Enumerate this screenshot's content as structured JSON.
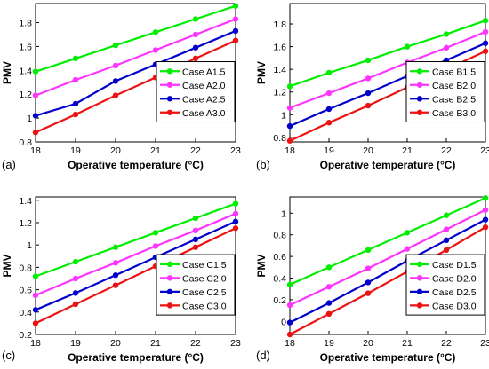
{
  "chart_data": [
    {
      "type": "line",
      "panel_label": "(a)",
      "xlabel": "Operative temperature (°C)",
      "ylabel": "PMV",
      "x": [
        18,
        19,
        20,
        21,
        22,
        23
      ],
      "xlim": [
        18,
        23
      ],
      "ylim": [
        0.8,
        1.96
      ],
      "yticks": [
        0.8,
        1.0,
        1.2,
        1.4,
        1.6,
        1.8
      ],
      "ytick_labels": [
        "0.8",
        "1",
        "1.2",
        "1.4",
        "1.6",
        "1.8"
      ],
      "legend_position": "center-right",
      "series": [
        {
          "name": "Case A1.5",
          "color": "#00ee00",
          "values": [
            1.39,
            1.5,
            1.61,
            1.72,
            1.83,
            1.94
          ]
        },
        {
          "name": "Case A2.0",
          "color": "#ff33ff",
          "values": [
            1.19,
            1.32,
            1.44,
            1.57,
            1.7,
            1.83
          ]
        },
        {
          "name": "Case A2.5",
          "color": "#0000cc",
          "values": [
            1.02,
            1.12,
            1.31,
            1.45,
            1.59,
            1.73
          ]
        },
        {
          "name": "Case A3.0",
          "color": "#ee1111",
          "values": [
            0.88,
            1.03,
            1.19,
            1.34,
            1.5,
            1.65
          ]
        }
      ]
    },
    {
      "type": "line",
      "panel_label": "(b)",
      "xlabel": "Operative temperature (°C)",
      "ylabel": "PMV",
      "x": [
        18,
        19,
        20,
        21,
        22,
        23
      ],
      "xlim": [
        18,
        23
      ],
      "ylim": [
        0.76,
        1.98
      ],
      "yticks": [
        0.8,
        1.0,
        1.2,
        1.4,
        1.6,
        1.8
      ],
      "ytick_labels": [
        "0.8",
        "1",
        "1.2",
        "1.4",
        "1.6",
        "1.8"
      ],
      "legend_position": "center-right",
      "series": [
        {
          "name": "Case B1.5",
          "color": "#00ee00",
          "values": [
            1.25,
            1.37,
            1.48,
            1.6,
            1.71,
            1.83
          ]
        },
        {
          "name": "Case B2.0",
          "color": "#ff33ff",
          "values": [
            1.06,
            1.19,
            1.32,
            1.46,
            1.59,
            1.73
          ]
        },
        {
          "name": "Case B2.5",
          "color": "#0000cc",
          "values": [
            0.9,
            1.05,
            1.19,
            1.34,
            1.48,
            1.63
          ]
        },
        {
          "name": "Case B3.0",
          "color": "#ee1111",
          "values": [
            0.77,
            0.93,
            1.08,
            1.24,
            1.4,
            1.56
          ]
        }
      ]
    },
    {
      "type": "line",
      "panel_label": "(c)",
      "xlabel": "Operative temperature (°C)",
      "ylabel": "PMV",
      "x": [
        18,
        19,
        20,
        21,
        22,
        23
      ],
      "xlim": [
        18,
        23
      ],
      "ylim": [
        0.2,
        1.43
      ],
      "yticks": [
        0.2,
        0.4,
        0.6,
        0.8,
        1.0,
        1.2,
        1.4
      ],
      "ytick_labels": [
        "0.2",
        "0.4",
        "0.6",
        "0.8",
        "1",
        "1.2",
        "1.4"
      ],
      "legend_position": "center-right",
      "series": [
        {
          "name": "Case C1.5",
          "color": "#00ee00",
          "values": [
            0.72,
            0.85,
            0.98,
            1.11,
            1.24,
            1.37
          ]
        },
        {
          "name": "Case C2.0",
          "color": "#ff33ff",
          "values": [
            0.55,
            0.7,
            0.84,
            0.99,
            1.13,
            1.28
          ]
        },
        {
          "name": "Case C2.5",
          "color": "#0000cc",
          "values": [
            0.42,
            0.57,
            0.73,
            0.89,
            1.05,
            1.21
          ]
        },
        {
          "name": "Case C3.0",
          "color": "#ee1111",
          "values": [
            0.3,
            0.47,
            0.64,
            0.81,
            0.98,
            1.15
          ]
        }
      ]
    },
    {
      "type": "line",
      "panel_label": "(d)",
      "xlabel": "Operative temperature (°C)",
      "ylabel": "PMV",
      "x": [
        18,
        19,
        20,
        21,
        22,
        23
      ],
      "xlim": [
        18,
        23
      ],
      "ylim": [
        -0.12,
        1.15
      ],
      "yticks": [
        0.0,
        0.2,
        0.4,
        0.6,
        0.8,
        1.0
      ],
      "ytick_labels": [
        "0",
        "0.2",
        "0.4",
        "0.6",
        "0.8",
        "1"
      ],
      "legend_position": "center-right",
      "series": [
        {
          "name": "Case D1.5",
          "color": "#00ee00",
          "values": [
            0.34,
            0.5,
            0.66,
            0.82,
            0.98,
            1.14
          ]
        },
        {
          "name": "Case D2.0",
          "color": "#ff33ff",
          "values": [
            0.15,
            0.32,
            0.49,
            0.67,
            0.85,
            1.03
          ]
        },
        {
          "name": "Case D2.5",
          "color": "#0000cc",
          "values": [
            -0.01,
            0.17,
            0.36,
            0.56,
            0.75,
            0.94
          ]
        },
        {
          "name": "Case D3.0",
          "color": "#ee1111",
          "values": [
            -0.12,
            0.07,
            0.26,
            0.46,
            0.66,
            0.87
          ]
        }
      ]
    }
  ]
}
